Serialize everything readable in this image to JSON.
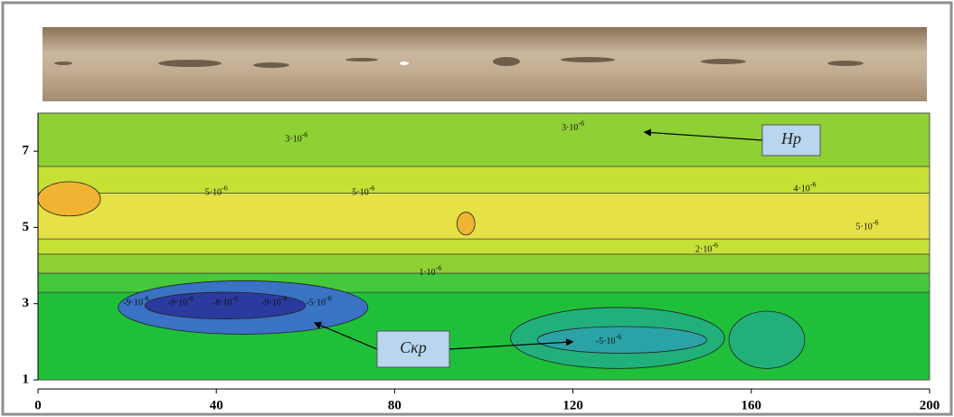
{
  "chart_data": {
    "type": "contour",
    "xlim": [
      0,
      200
    ],
    "ylim": [
      1,
      8
    ],
    "xticks": [
      0,
      40,
      80,
      120,
      160,
      200
    ],
    "yticks": [
      1,
      3,
      5,
      7
    ],
    "colormap": [
      {
        "level": -9e-06,
        "color": "#2b3a9e"
      },
      {
        "level": -5e-06,
        "color": "#3a72c4"
      },
      {
        "level": -3e-06,
        "color": "#2ba3a6"
      },
      {
        "level": -1e-06,
        "color": "#22b07a"
      },
      {
        "level": 1e-06,
        "color": "#1fbf3a"
      },
      {
        "level": 2e-06,
        "color": "#45c83c"
      },
      {
        "level": 3e-06,
        "color": "#8fd035"
      },
      {
        "level": 4e-06,
        "color": "#c7e035"
      },
      {
        "level": 5e-06,
        "color": "#e6e145"
      },
      {
        "level": 6e-06,
        "color": "#f0b432"
      }
    ],
    "rows": [
      {
        "y": [
          1,
          3.3
        ],
        "value": 1e-06
      },
      {
        "y": [
          3.3,
          3.8
        ],
        "value": 2e-06
      },
      {
        "y": [
          3.8,
          4.3
        ],
        "value": 3e-06
      },
      {
        "y": [
          4.3,
          4.7
        ],
        "value": 4e-06
      },
      {
        "y": [
          4.7,
          5.9
        ],
        "value": 5e-06
      },
      {
        "y": [
          5.9,
          6.6
        ],
        "value": 4e-06
      },
      {
        "y": [
          6.6,
          8
        ],
        "value": 3e-06
      }
    ],
    "features": [
      {
        "x": [
          18,
          74
        ],
        "y": [
          2.2,
          3.6
        ],
        "value": -5e-06
      },
      {
        "x": [
          24,
          60
        ],
        "y": [
          2.6,
          3.3
        ],
        "value": -9e-06
      },
      {
        "x": [
          0,
          14
        ],
        "y": [
          5.3,
          6.2
        ],
        "value": 6e-06
      },
      {
        "x": [
          94,
          98
        ],
        "y": [
          4.8,
          5.4
        ],
        "value": 6e-06
      },
      {
        "x": [
          106,
          154
        ],
        "y": [
          1.3,
          2.9
        ],
        "value": -1e-06
      },
      {
        "x": [
          112,
          150
        ],
        "y": [
          1.7,
          2.4
        ],
        "value": -3e-06
      },
      {
        "x": [
          155,
          172
        ],
        "y": [
          1.3,
          2.8
        ],
        "value": -1e-06
      }
    ],
    "contour_labels": [
      {
        "value": -9e-06,
        "label": "-9·10",
        "exp": "-6",
        "x": 22,
        "y": 3
      },
      {
        "value": -9e-06,
        "label": "-9·10",
        "exp": "-6",
        "x": 32,
        "y": 3
      },
      {
        "value": -8e-06,
        "label": "-8·10",
        "exp": "-6",
        "x": 42,
        "y": 3
      },
      {
        "value": -9e-06,
        "label": "-9·10",
        "exp": "-6",
        "x": 53,
        "y": 3
      },
      {
        "value": -5e-06,
        "label": "-5·10",
        "exp": "-6",
        "x": 63,
        "y": 3
      },
      {
        "value": -5e-06,
        "label": "-5·10",
        "exp": "-6",
        "x": 128,
        "y": 2
      },
      {
        "value": 5e-06,
        "label": "5·10",
        "exp": "-6",
        "x": 40,
        "y": 5.9
      },
      {
        "value": 5e-06,
        "label": "5·10",
        "exp": "-6",
        "x": 73,
        "y": 5.9
      },
      {
        "value": 4e-06,
        "label": "4·10",
        "exp": "-6",
        "x": 172,
        "y": 6
      },
      {
        "value": 3e-06,
        "label": "3·10",
        "exp": "-6",
        "x": 58,
        "y": 7.3
      },
      {
        "value": 3e-06,
        "label": "3·10",
        "exp": "-6",
        "x": 120,
        "y": 7.6
      },
      {
        "value": 1e-06,
        "label": "1·10",
        "exp": "-6",
        "x": 88,
        "y": 3.8
      },
      {
        "value": 2e-06,
        "label": "2·10",
        "exp": "-6",
        "x": 150,
        "y": 4.4
      },
      {
        "value": 5e-06,
        "label": "5·10",
        "exp": "-6",
        "x": 186,
        "y": 5
      }
    ],
    "annotations": [
      {
        "text": "Нр",
        "x": 136,
        "y": 7.5
      },
      {
        "text": "Скр",
        "x": 62,
        "y": 2.5,
        "x2": 120,
        "y2": 2
      }
    ]
  }
}
